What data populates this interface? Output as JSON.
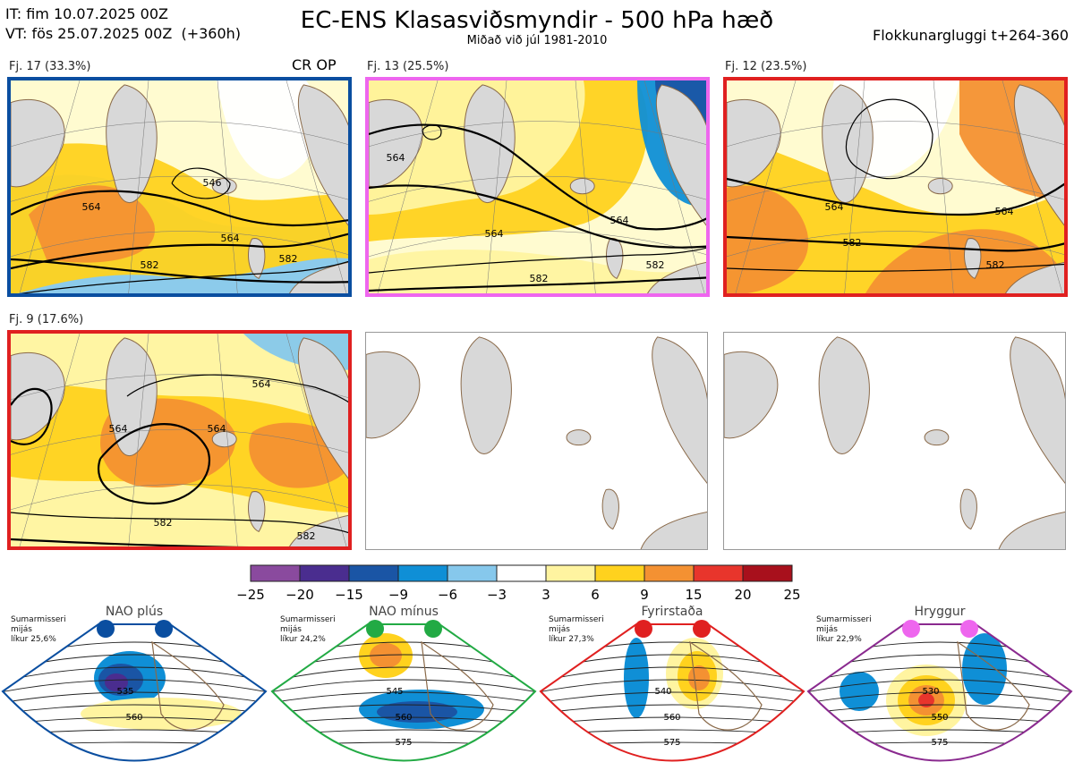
{
  "header": {
    "it": "IT: fim 10.07.2025 00Z",
    "vt": "VT: fös 25.07.2025 00Z  (+360h)",
    "title": "EC-ENS Klasasviðsmyndir - 500 hPa hæð",
    "subtitle": "Miðað við júl 1981-2010",
    "window": "Flokkunargluggi t+264-360"
  },
  "panels": [
    {
      "label": "Fj. 17 (33.3%)",
      "tag": "CR OP",
      "border": "#0a4ea0",
      "contours": [
        "564",
        "546",
        "564",
        "582",
        "582"
      ],
      "dominant": "positive"
    },
    {
      "label": "Fj. 13 (25.5%)",
      "tag": "",
      "border": "#ee66ee",
      "contours": [
        "564",
        "564",
        "564",
        "582",
        "582"
      ],
      "dominant": "mixed"
    },
    {
      "label": "Fj. 12 (23.5%)",
      "tag": "",
      "border": "#e02020",
      "contours": [
        "564",
        "564",
        "582",
        "582"
      ],
      "dominant": "positive"
    },
    {
      "label": "Fj. 9 (17.6%)",
      "tag": "",
      "border": "#e02020",
      "contours": [
        "564",
        "564",
        "564",
        "582",
        "582"
      ],
      "dominant": "strong-positive"
    }
  ],
  "empty_panels": [
    "empty-map-1",
    "empty-map-2"
  ],
  "chart_data": {
    "type": "heatmap",
    "title": "EC-ENS Klasasviðsmyndir - 500 hPa hæð",
    "colorbar": {
      "ticks": [
        "−25",
        "−20",
        "−15",
        "−9",
        "−6",
        "−3",
        "3",
        "6",
        "9",
        "15",
        "20",
        "25"
      ],
      "colors": [
        "#8a4a9e",
        "#4a2d8f",
        "#1a55a5",
        "#0f8fd6",
        "#86c8ec",
        "#ffffff",
        "#fff4a0",
        "#ffd21e",
        "#f49132",
        "#e8352c",
        "#a8101c"
      ]
    },
    "clusters": [
      {
        "name": "Fj. 17",
        "probability": 33.3
      },
      {
        "name": "Fj. 13",
        "probability": 25.5
      },
      {
        "name": "Fj. 12",
        "probability": 23.5
      },
      {
        "name": "Fj. 9",
        "probability": 17.6
      }
    ]
  },
  "regimes": [
    {
      "name": "NAO plús",
      "prob": "Sumarmisseri\nmijás\nlíkur 25,6%",
      "dot": "#0a4ea0",
      "border": "#0a4ea0",
      "contours": [
        "535",
        "560"
      ]
    },
    {
      "name": "NAO mínus",
      "prob": "Sumarmisseri\nmijás\nlíkur 24,2%",
      "dot": "#22aa44",
      "border": "#22aa44",
      "contours": [
        "545",
        "560",
        "575"
      ]
    },
    {
      "name": "Fyrirstaða",
      "prob": "Sumarmisseri\nmijás\nlíkur 27,3%",
      "dot": "#e02020",
      "border": "#e02020",
      "contours": [
        "540",
        "560",
        "575"
      ]
    },
    {
      "name": "Hryggur",
      "prob": "Sumarmisseri\nmijás\nlíkur 22,9%",
      "dot": "#ee66ee",
      "border": "#8a2a8f",
      "contours": [
        "530",
        "550",
        "575"
      ]
    }
  ]
}
